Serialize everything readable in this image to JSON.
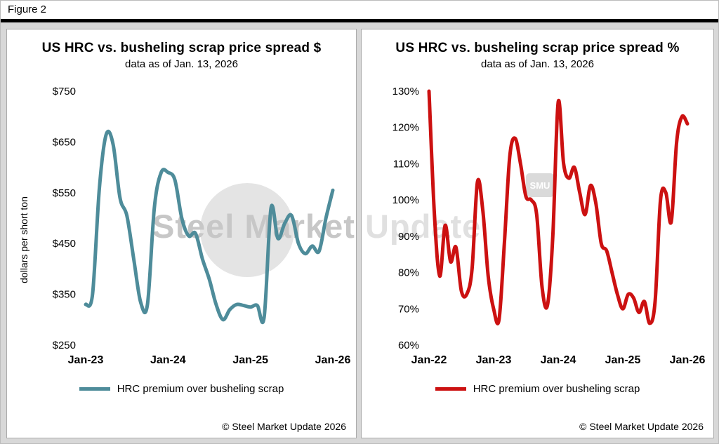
{
  "figure": {
    "label": "Figure 2"
  },
  "watermark": {
    "text_left": "Steel Market",
    "text_right": " Update",
    "badge": "SMU"
  },
  "chart_data": [
    {
      "type": "line",
      "title": "US HRC vs. busheling scrap price spread $",
      "subtitle": "data as of Jan. 13, 2026",
      "ylabel": "dollars per short ton",
      "x_unit": "months since Jan-23",
      "xlim": [
        0,
        36
      ],
      "ylim": [
        250,
        750
      ],
      "grid": false,
      "legend_position": "bottom",
      "xticks": [
        {
          "position": 0,
          "label": "Jan-23"
        },
        {
          "position": 12,
          "label": "Jan-24"
        },
        {
          "position": 24,
          "label": "Jan-25"
        },
        {
          "position": 36,
          "label": "Jan-26"
        }
      ],
      "yticks": [
        {
          "value": 750,
          "label": "$750"
        },
        {
          "value": 650,
          "label": "$650"
        },
        {
          "value": 550,
          "label": "$550"
        },
        {
          "value": 450,
          "label": "$450"
        },
        {
          "value": 350,
          "label": "$350"
        },
        {
          "value": 250,
          "label": "$250"
        }
      ],
      "series": [
        {
          "name": "HRC premium over busheling scrap",
          "color": "#4e8c9a",
          "values": [
            330,
            350,
            560,
            665,
            645,
            540,
            505,
            420,
            335,
            330,
            520,
            590,
            590,
            575,
            500,
            465,
            470,
            420,
            380,
            330,
            300,
            320,
            330,
            328,
            325,
            328,
            305,
            520,
            460,
            490,
            505,
            450,
            430,
            445,
            435,
            500,
            555
          ]
        }
      ],
      "copyright": "© Steel Market Update 2026"
    },
    {
      "type": "line",
      "title": "US HRC vs. busheling scrap price spread %",
      "subtitle": "data as of Jan. 13, 2026",
      "ylabel": "",
      "x_unit": "months since Jan-22",
      "xlim": [
        0,
        48
      ],
      "ylim": [
        60,
        130
      ],
      "grid": false,
      "legend_position": "bottom",
      "xticks": [
        {
          "position": 0,
          "label": "Jan-22"
        },
        {
          "position": 12,
          "label": "Jan-23"
        },
        {
          "position": 24,
          "label": "Jan-24"
        },
        {
          "position": 36,
          "label": "Jan-25"
        },
        {
          "position": 48,
          "label": "Jan-26"
        }
      ],
      "yticks": [
        {
          "value": 130,
          "label": "130%"
        },
        {
          "value": 120,
          "label": "120%"
        },
        {
          "value": 110,
          "label": "110%"
        },
        {
          "value": 100,
          "label": "100%"
        },
        {
          "value": 90,
          "label": "90%"
        },
        {
          "value": 80,
          "label": "80%"
        },
        {
          "value": 70,
          "label": "70%"
        },
        {
          "value": 60,
          "label": "60%"
        }
      ],
      "series": [
        {
          "name": "HRC premium over busheling scrap",
          "color": "#cc1111",
          "values": [
            130,
            96,
            79,
            93,
            83,
            87,
            75,
            74,
            81,
            105,
            97,
            79,
            70,
            67,
            88,
            112,
            117,
            110,
            101,
            100,
            96,
            76,
            71,
            90,
            127,
            110,
            106,
            109,
            102,
            96,
            104,
            99,
            88,
            86,
            80,
            74,
            70,
            74,
            73,
            69,
            72,
            66,
            72,
            100,
            102,
            94,
            116,
            123,
            121
          ]
        }
      ],
      "copyright": "© Steel Market Update 2026"
    }
  ]
}
